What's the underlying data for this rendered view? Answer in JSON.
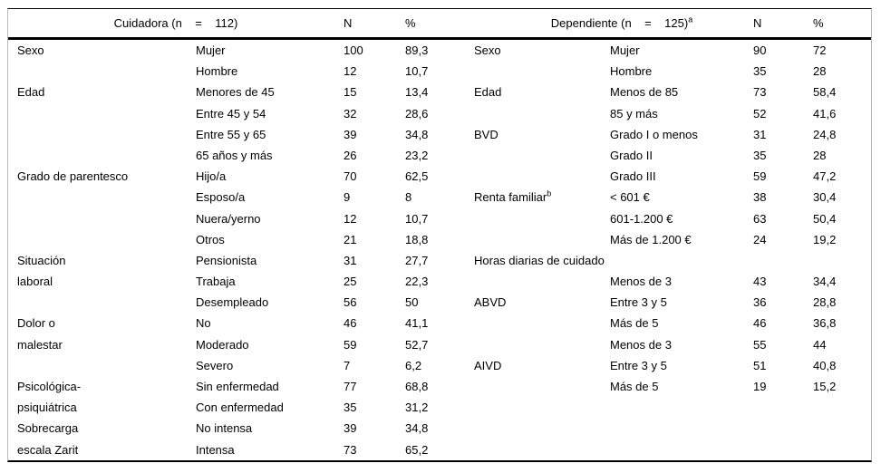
{
  "table": {
    "header": {
      "caregiver_title": "Cuidadora (n    =    112)",
      "caregiver_n": "N",
      "caregiver_pct": "%",
      "dependent_title": "Dependiente (n    =    125)",
      "dependent_title_sup": "a",
      "dependent_n": "N",
      "dependent_pct": "%"
    },
    "rows": [
      {
        "l": [
          "Sexo",
          "Mujer",
          "100",
          "89,3"
        ],
        "r": [
          "Sexo",
          "Mujer",
          "90",
          "72"
        ]
      },
      {
        "l": [
          "",
          "Hombre",
          "12",
          "10,7"
        ],
        "r": [
          "",
          "Hombre",
          "35",
          "28"
        ]
      },
      {
        "l": [
          "Edad",
          "Menores de 45",
          "15",
          "13,4"
        ],
        "r": [
          "Edad",
          "Menos de 85",
          "73",
          "58,4"
        ]
      },
      {
        "l": [
          "",
          "Entre 45 y 54",
          "32",
          "28,6"
        ],
        "r": [
          "",
          "85 y más",
          "52",
          "41,6"
        ]
      },
      {
        "l": [
          "",
          "Entre 55 y 65",
          "39",
          "34,8"
        ],
        "r": [
          "BVD",
          "Grado I o menos",
          "31",
          "24,8"
        ]
      },
      {
        "l": [
          "",
          "65 años y más",
          "26",
          "23,2"
        ],
        "r": [
          "",
          "Grado II",
          "35",
          "28"
        ]
      },
      {
        "l": [
          "Grado de parentesco",
          "Hijo/a",
          "70",
          "62,5"
        ],
        "r": [
          "",
          "Grado III",
          "59",
          "47,2"
        ]
      },
      {
        "l": [
          "",
          "Esposo/a",
          "9",
          "8"
        ],
        "r": [
          "Renta familiar",
          "< 601 €",
          "38",
          "30,4"
        ],
        "r_sup": "b"
      },
      {
        "l": [
          "",
          "Nuera/yerno",
          "12",
          "10,7"
        ],
        "r": [
          "",
          "601-1.200 €",
          "63",
          "50,4"
        ]
      },
      {
        "l": [
          "",
          "Otros",
          "21",
          "18,8"
        ],
        "r": [
          "",
          "Más de 1.200 €",
          "24",
          "19,2"
        ]
      },
      {
        "l": [
          "Situación",
          "Pensionista",
          "31",
          "27,7"
        ],
        "r": [
          "Horas diarias de cuidado",
          "",
          "",
          ""
        ],
        "r_span": true
      },
      {
        "l": [
          "laboral",
          "Trabaja",
          "25",
          "22,3"
        ],
        "r": [
          "",
          "Menos de 3",
          "43",
          "34,4"
        ]
      },
      {
        "l": [
          "",
          "Desempleado",
          "56",
          "50"
        ],
        "r": [
          "ABVD",
          "Entre 3 y 5",
          "36",
          "28,8"
        ]
      },
      {
        "l": [
          "Dolor o",
          "No",
          "46",
          "41,1"
        ],
        "r": [
          "",
          "Más de 5",
          "46",
          "36,8"
        ]
      },
      {
        "l": [
          "malestar",
          "Moderado",
          "59",
          "52,7"
        ],
        "r": [
          "",
          "Menos de 3",
          "55",
          "44"
        ]
      },
      {
        "l": [
          "",
          "Severo",
          "7",
          "6,2"
        ],
        "r": [
          "AIVD",
          "Entre 3 y 5",
          "51",
          "40,8"
        ]
      },
      {
        "l": [
          "Psicológica-",
          "Sin enfermedad",
          "77",
          "68,8"
        ],
        "r": [
          "",
          "Más de 5",
          "19",
          "15,2"
        ]
      },
      {
        "l": [
          "psiquiátrica",
          "Con enfermedad",
          "35",
          "31,2"
        ],
        "r": [
          "",
          "",
          "",
          ""
        ]
      },
      {
        "l": [
          "Sobrecarga",
          "No intensa",
          "39",
          "34,8"
        ],
        "r": [
          "",
          "",
          "",
          ""
        ]
      },
      {
        "l": [
          "escala Zarit",
          "Intensa",
          "73",
          "65,2"
        ],
        "r": [
          "",
          "",
          "",
          ""
        ]
      }
    ]
  }
}
